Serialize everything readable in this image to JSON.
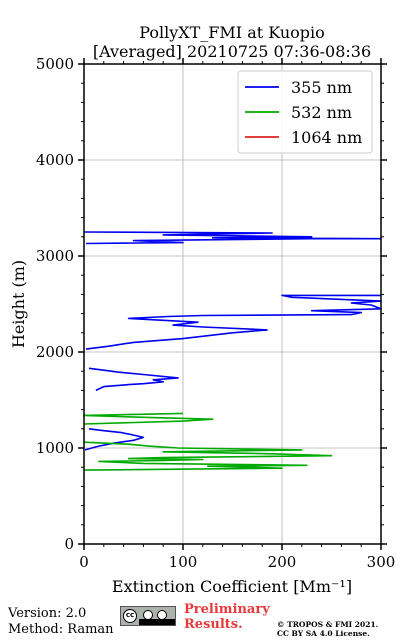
{
  "chart_data": {
    "type": "line",
    "title": "PollyXT_FMI at Kuopio",
    "subtitle": "[Averaged] 20210725 07:36-08:36",
    "xlabel": "Extinction Coefficient [Mm⁻¹]",
    "ylabel": "Height (m)",
    "xlim": [
      0,
      300
    ],
    "ylim": [
      0,
      5000
    ],
    "xticks": [
      "0",
      "100",
      "200",
      "300"
    ],
    "yticks": [
      "0",
      "1000",
      "2000",
      "3000",
      "4000",
      "5000"
    ],
    "grid": true,
    "legend_position": "top-right",
    "series": [
      {
        "name": "355 nm",
        "color": "#0000ee",
        "points": [
          [
            1,
            980
          ],
          [
            15,
            1020
          ],
          [
            30,
            1050
          ],
          [
            50,
            1080
          ],
          [
            60,
            1110
          ],
          [
            48,
            1140
          ],
          [
            38,
            1160
          ],
          [
            20,
            1180
          ],
          [
            5,
            1200
          ],
          [
            null,
            null
          ],
          [
            12,
            1600
          ],
          [
            20,
            1640
          ],
          [
            45,
            1660
          ],
          [
            60,
            1670
          ],
          [
            80,
            1690
          ],
          [
            70,
            1710
          ],
          [
            95,
            1730
          ],
          [
            65,
            1760
          ],
          [
            35,
            1790
          ],
          [
            20,
            1810
          ],
          [
            5,
            1830
          ],
          [
            null,
            null
          ],
          [
            2,
            2030
          ],
          [
            25,
            2060
          ],
          [
            50,
            2100
          ],
          [
            100,
            2140
          ],
          [
            125,
            2170
          ],
          [
            150,
            2200
          ],
          [
            185,
            2230
          ],
          [
            120,
            2260
          ],
          [
            90,
            2280
          ],
          [
            115,
            2310
          ],
          [
            45,
            2350
          ],
          [
            85,
            2370
          ],
          [
            120,
            2380
          ],
          [
            270,
            2390
          ],
          [
            280,
            2410
          ],
          [
            230,
            2430
          ],
          [
            300,
            2450
          ],
          [
            290,
            2490
          ],
          [
            270,
            2510
          ],
          [
            300,
            2530
          ],
          [
            255,
            2550
          ],
          [
            210,
            2570
          ],
          [
            200,
            2590
          ],
          [
            300,
            2590
          ],
          [
            null,
            null
          ],
          [
            2,
            3130
          ],
          [
            100,
            3140
          ],
          [
            50,
            3160
          ],
          [
            230,
            3180
          ],
          [
            300,
            3180
          ],
          [
            130,
            3190
          ],
          [
            230,
            3200
          ],
          [
            80,
            3220
          ],
          [
            190,
            3240
          ],
          [
            0,
            3250
          ]
        ]
      },
      {
        "name": "532 nm",
        "color": "#00aa00",
        "points": [
          [
            0,
            770
          ],
          [
            200,
            790
          ],
          [
            125,
            810
          ],
          [
            225,
            820
          ],
          [
            60,
            840
          ],
          [
            15,
            860
          ],
          [
            80,
            870
          ],
          [
            120,
            880
          ],
          [
            45,
            890
          ],
          [
            80,
            900
          ],
          [
            250,
            920
          ],
          [
            190,
            940
          ],
          [
            80,
            960
          ],
          [
            220,
            980
          ],
          [
            95,
            1000
          ],
          [
            65,
            1020
          ],
          [
            45,
            1040
          ],
          [
            0,
            1060
          ],
          [
            null,
            null
          ],
          [
            0,
            1250
          ],
          [
            100,
            1280
          ],
          [
            130,
            1300
          ],
          [
            60,
            1320
          ],
          [
            0,
            1340
          ],
          [
            100,
            1360
          ]
        ]
      },
      {
        "name": "1064 nm",
        "color": "#dd2222",
        "points": []
      }
    ]
  },
  "footer": {
    "version": "Version: 2.0",
    "method": "Method: Raman",
    "cc_label": "cc",
    "prelim_line1": "Preliminary",
    "prelim_line2": "Results.",
    "copyright_line1": "© TROPOS & FMI 2021.",
    "copyright_line2": "CC BY SA 4.0 License."
  }
}
